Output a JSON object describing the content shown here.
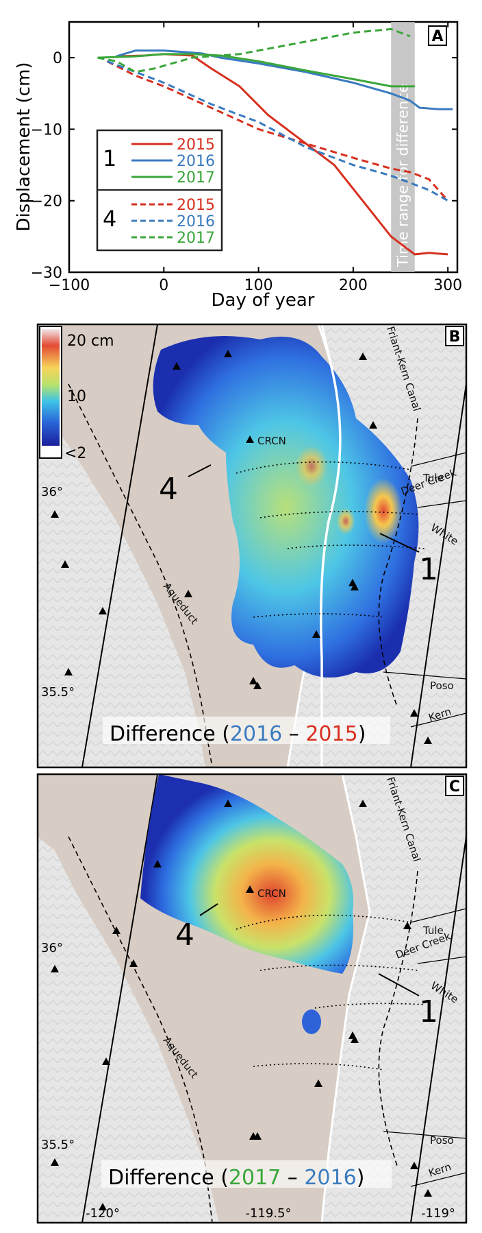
{
  "colors": {
    "y2015": "#d7301f",
    "y2016": "#3a7bbf",
    "y2017": "#3aa63a"
  },
  "chart_data": [
    {
      "type": "line",
      "panel": "A",
      "xlabel": "Day of year",
      "ylabel": "Displacement (cm)",
      "xlim": [
        -100,
        310
      ],
      "ylim": [
        -30,
        5
      ],
      "xticks": [
        "-100",
        "0",
        "100",
        "200",
        "300"
      ],
      "yticks": [
        "0",
        "-10",
        "-20",
        "-30"
      ],
      "shaded_label": "Time range for difference",
      "shaded_range": [
        240,
        265
      ],
      "legend": {
        "group1": "1",
        "group4": "4",
        "years": [
          "2015",
          "2016",
          "2017"
        ]
      },
      "series": [
        {
          "name": "2015",
          "site": "1",
          "style": "solid",
          "color": "#d7301f",
          "x": [
            -50,
            -20,
            0,
            30,
            50,
            80,
            110,
            150,
            180,
            210,
            240,
            265,
            280,
            300
          ],
          "y": [
            0.2,
            0.3,
            0.5,
            0.3,
            -1.5,
            -4,
            -8,
            -12,
            -15,
            -20,
            -25,
            -27.5,
            -27.3,
            -27.5
          ]
        },
        {
          "name": "2016",
          "site": "1",
          "style": "solid",
          "color": "#3a7bbf",
          "x": [
            -50,
            -30,
            0,
            20,
            40,
            60,
            100,
            150,
            200,
            240,
            260,
            270,
            290,
            305
          ],
          "y": [
            0.2,
            1,
            1,
            0.8,
            0.6,
            0,
            -0.8,
            -2,
            -3.5,
            -5,
            -6,
            -7,
            -7.2,
            -7.2
          ]
        },
        {
          "name": "2017",
          "site": "1",
          "style": "solid",
          "color": "#3aa63a",
          "x": [
            -70,
            -50,
            -30,
            0,
            30,
            60,
            100,
            150,
            200,
            240,
            265
          ],
          "y": [
            0,
            0.1,
            0.2,
            0.5,
            0.5,
            0.3,
            -0.5,
            -1.8,
            -3,
            -4,
            -4
          ]
        },
        {
          "name": "2015",
          "site": "4",
          "style": "dashed",
          "color": "#d7301f",
          "x": [
            -60,
            -30,
            0,
            50,
            100,
            150,
            200,
            240,
            260,
            280,
            300
          ],
          "y": [
            -0.5,
            -2.5,
            -4,
            -7,
            -10,
            -12,
            -14,
            -15.5,
            -16,
            -17,
            -20
          ]
        },
        {
          "name": "2016",
          "site": "4",
          "style": "dashed",
          "color": "#3a7bbf",
          "x": [
            -60,
            -30,
            0,
            50,
            100,
            150,
            200,
            240,
            260,
            280,
            300
          ],
          "y": [
            -0.5,
            -2,
            -3.5,
            -6.5,
            -9,
            -12.5,
            -15,
            -16.5,
            -17.5,
            -18.5,
            -20
          ]
        },
        {
          "name": "2017",
          "site": "4",
          "style": "dashed",
          "color": "#3aa63a",
          "x": [
            -70,
            -50,
            -30,
            -10,
            30,
            80,
            120,
            160,
            200,
            240,
            260
          ],
          "y": [
            0,
            -0.5,
            -2,
            -1.5,
            0,
            0.5,
            1.5,
            2.5,
            3.5,
            4,
            3
          ]
        }
      ]
    },
    {
      "type": "heatmap",
      "panel": "B",
      "title_parts": [
        "Difference (",
        "2016",
        " – ",
        "2015",
        ")"
      ],
      "colorbar": {
        "max_label": "20 cm",
        "mid_label": "10",
        "min_label": "<2",
        "colors": [
          "#f2e6e8",
          "#e34a33",
          "#f7d35a",
          "#b6e26c",
          "#3ec3e8",
          "#2a65d8",
          "#1a1f9c"
        ]
      },
      "labels": [
        "CRCN",
        "Friant-Kern Canal",
        "Tule",
        "Deer Creek",
        "White",
        "Poso",
        "Kern",
        "Aqueduct"
      ],
      "sites": [
        "4",
        "1"
      ],
      "lat_ticks": [
        "36°",
        "35.5°"
      ]
    },
    {
      "type": "heatmap",
      "panel": "C",
      "title_parts": [
        "Difference (",
        "2017",
        " – ",
        "2016",
        ")"
      ],
      "labels": [
        "CRCN",
        "Friant-Kern Canal",
        "Tule",
        "Deer Creek",
        "White",
        "Poso",
        "Kern",
        "Aqueduct"
      ],
      "sites": [
        "4",
        "1"
      ],
      "lat_ticks": [
        "36°",
        "35.5°"
      ],
      "lon_ticks": [
        "-120°",
        "-119.5°",
        "-119°"
      ]
    }
  ]
}
